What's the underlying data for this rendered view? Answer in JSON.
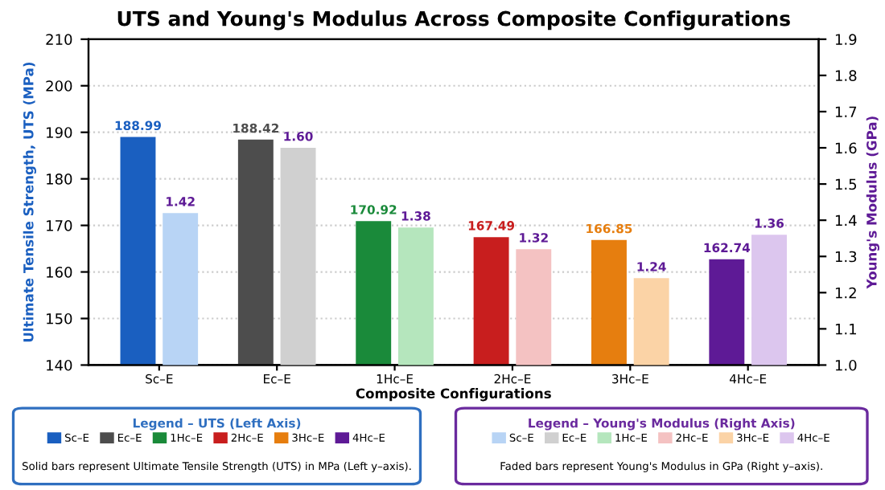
{
  "chart_data": {
    "type": "bar",
    "title": "UTS and Young's Modulus Across Composite Configurations",
    "xlabel": "Composite Configurations",
    "ylabel": "Ultimate Tensile Strength, UTS (MPa)",
    "y2label": "Young's Modulus (GPa)",
    "categories": [
      "Sc–E",
      "Ec–E",
      "1Hc–E",
      "2Hc–E",
      "3Hc–E",
      "4Hc–E"
    ],
    "series": [
      {
        "name": "Legend – UTS (Left Axis)",
        "colors": [
          "#1a5fc0",
          "#4d4d4d",
          "#1a8a3a",
          "#c81e1e",
          "#e67e0f",
          "#5e1a96"
        ],
        "values": [
          188.99,
          188.42,
          170.92,
          167.49,
          166.85,
          162.74
        ],
        "value_labels": [
          "188.99",
          "188.42",
          "170.92",
          "167.49",
          "166.85",
          "162.74"
        ]
      },
      {
        "name": "Legend – Young's Modulus (Right Axis)",
        "axis": "y2",
        "colors": [
          "#b8d4f5",
          "#d0d0d0",
          "#b5e6bd",
          "#f4c2c2",
          "#fbd3a6",
          "#dcc6ee"
        ],
        "values": [
          1.42,
          1.6,
          1.38,
          1.32,
          1.24,
          1.36
        ],
        "value_labels": [
          "1.42",
          "1.60",
          "1.38",
          "1.32",
          "1.24",
          "1.36"
        ]
      }
    ],
    "ylim": [
      140,
      210
    ],
    "yticks": [
      140,
      150,
      160,
      170,
      180,
      190,
      200,
      210
    ],
    "y2lim": [
      1.0,
      1.9
    ],
    "y2ticks": [
      {
        "value": 1.0,
        "label": "1.0"
      },
      {
        "value": 1.1,
        "label": "1.1"
      },
      {
        "value": 1.2,
        "label": "1.2"
      },
      {
        "value": 1.3,
        "label": "1.3"
      },
      {
        "value": 1.4,
        "label": "1.4"
      },
      {
        "value": 1.5,
        "label": "1.5"
      },
      {
        "value": 1.6,
        "label": "1.6"
      },
      {
        "value": 1.7,
        "label": "1.7"
      },
      {
        "value": 1.8,
        "label": "1.8"
      },
      {
        "value": 1.9,
        "label": "1.9"
      }
    ],
    "grid": "y",
    "legend": "bottom",
    "annotations": [
      "Solid bars represent Ultimate Tensile Strength (UTS) in MPa (Left y–axis).",
      "Faded bars represent Young's Modulus in GPa (Right y–axis)."
    ]
  }
}
